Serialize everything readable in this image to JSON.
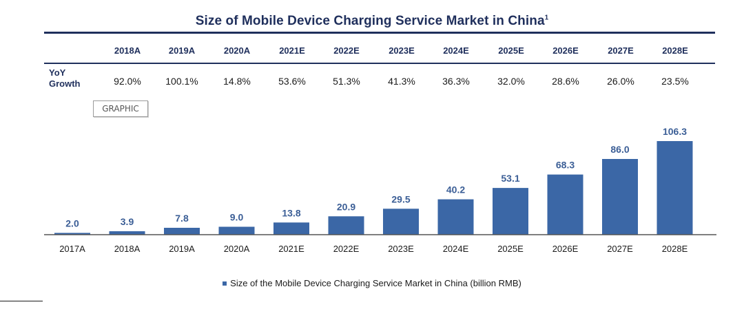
{
  "title": "Size of Mobile Device Charging Service Market in China",
  "title_footnote": "1",
  "table": {
    "headers": [
      "2018A",
      "2019A",
      "2020A",
      "2021E",
      "2022E",
      "2023E",
      "2024E",
      "2025E",
      "2026E",
      "2027E",
      "2028E"
    ],
    "row_label_line1": "YoY",
    "row_label_line2": "Growth",
    "values": [
      "92.0%",
      "100.1%",
      "14.8%",
      "53.6%",
      "51.3%",
      "41.3%",
      "36.3%",
      "32.0%",
      "28.6%",
      "26.0%",
      "23.5%"
    ]
  },
  "graphic_label": "GRAPHIC",
  "colors": {
    "bar": "#3b67a6",
    "label": "#3b5e96",
    "navy": "#1f2f5c",
    "baseline": "#555555"
  },
  "chart_data": {
    "type": "bar",
    "categories": [
      "2017A",
      "2018A",
      "2019A",
      "2020A",
      "2021E",
      "2022E",
      "2023E",
      "2024E",
      "2025E",
      "2026E",
      "2027E",
      "2028E"
    ],
    "series": [
      {
        "name": "Size of the Mobile Device Charging Service Market in China (billion RMB)",
        "values": [
          2.0,
          3.9,
          7.8,
          9.0,
          13.8,
          20.9,
          29.5,
          40.2,
          53.1,
          68.3,
          86.0,
          106.3
        ]
      }
    ],
    "data_labels": [
      "2.0",
      "3.9",
      "7.8",
      "9.0",
      "13.8",
      "20.9",
      "29.5",
      "40.2",
      "53.1",
      "68.3",
      "86.0",
      "106.3"
    ],
    "legend_position": "bottom-center",
    "grid": false
  }
}
